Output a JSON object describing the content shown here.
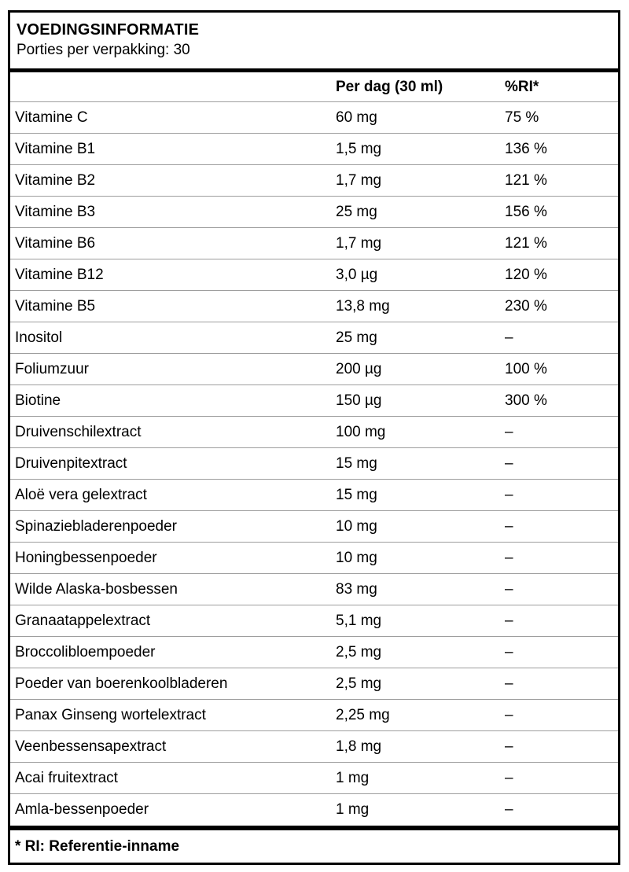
{
  "colors": {
    "border": "#000000",
    "row_divider": "#9e9e9e",
    "background": "#ffffff",
    "text": "#000000"
  },
  "header": {
    "title": "VOEDINGSINFORMATIE",
    "subtitle": "Porties per verpakking: 30"
  },
  "table": {
    "columns": {
      "name": "",
      "amount": "Per dag (30 ml)",
      "ri": "%RI*"
    },
    "rows": [
      {
        "name": "Vitamine C",
        "amount": "60 mg",
        "ri": "75 %"
      },
      {
        "name": "Vitamine B1",
        "amount": "1,5 mg",
        "ri": "136 %"
      },
      {
        "name": "Vitamine B2",
        "amount": "1,7 mg",
        "ri": "121 %"
      },
      {
        "name": "Vitamine B3",
        "amount": "25 mg",
        "ri": "156 %"
      },
      {
        "name": "Vitamine B6",
        "amount": "1,7 mg",
        "ri": "121 %"
      },
      {
        "name": "Vitamine B12",
        "amount": "3,0 µg",
        "ri": "120 %"
      },
      {
        "name": "Vitamine B5",
        "amount": "13,8 mg",
        "ri": "230 %"
      },
      {
        "name": "Inositol",
        "amount": "25 mg",
        "ri": "–"
      },
      {
        "name": "Foliumzuur",
        "amount": "200 µg",
        "ri": "100 %"
      },
      {
        "name": "Biotine",
        "amount": "150 µg",
        "ri": "300 %"
      },
      {
        "name": "Druivenschilextract",
        "amount": "100 mg",
        "ri": "–"
      },
      {
        "name": "Druivenpitextract",
        "amount": "15 mg",
        "ri": "–"
      },
      {
        "name": "Aloë vera gelextract",
        "amount": "15 mg",
        "ri": "–"
      },
      {
        "name": "Spinaziebladerenpoeder",
        "amount": "10 mg",
        "ri": "–"
      },
      {
        "name": "Honingbessenpoeder",
        "amount": "10 mg",
        "ri": "–"
      },
      {
        "name": "Wilde Alaska-bosbessen",
        "amount": "83 mg",
        "ri": "–"
      },
      {
        "name": "Granaatappelextract",
        "amount": "5,1 mg",
        "ri": "–"
      },
      {
        "name": "Broccolibloempoeder",
        "amount": "2,5 mg",
        "ri": "–"
      },
      {
        "name": "Poeder van boerenkoolbladeren",
        "amount": "2,5 mg",
        "ri": "–"
      },
      {
        "name": "Panax Ginseng wortelextract",
        "amount": "2,25 mg",
        "ri": "–"
      },
      {
        "name": "Veenbessensapextract",
        "amount": "1,8 mg",
        "ri": "–"
      },
      {
        "name": "Acai fruitextract",
        "amount": "1 mg",
        "ri": "–"
      },
      {
        "name": "Amla-bessenpoeder",
        "amount": "1 mg",
        "ri": "–"
      }
    ]
  },
  "footer": {
    "note": "* RI: Referentie-inname"
  }
}
